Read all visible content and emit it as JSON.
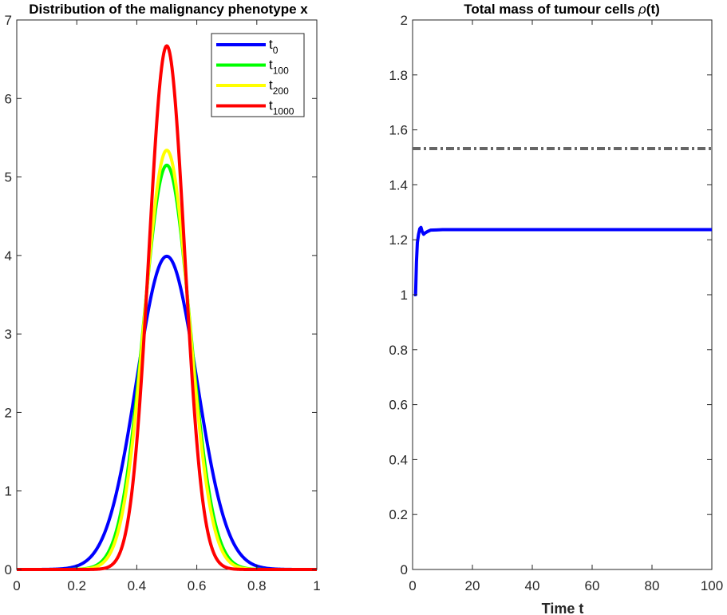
{
  "chart_data": [
    {
      "type": "line",
      "title": "Distribution of the malignancy phenotype x",
      "xlabel": "",
      "ylabel": "",
      "xlim": [
        0,
        1
      ],
      "ylim": [
        0,
        7
      ],
      "xticks": [
        0,
        0.2,
        0.4,
        0.6,
        0.8,
        1
      ],
      "xtick_labels": [
        "0",
        "0.2",
        "0.4",
        "0.6",
        "0.8",
        "1"
      ],
      "yticks": [
        0,
        1,
        2,
        3,
        4,
        5,
        6,
        7
      ],
      "ytick_labels": [
        "0",
        "1",
        "2",
        "3",
        "4",
        "5",
        "6",
        "7"
      ],
      "legend_position": "top-right",
      "series": [
        {
          "name": "t0",
          "base": "t",
          "sub": "0",
          "color": "#0000ff",
          "peak": 3.99,
          "center": 0.5,
          "sigma": 0.1
        },
        {
          "name": "t100",
          "base": "t",
          "sub": "100",
          "color": "#00ff00",
          "peak": 5.15,
          "center": 0.5,
          "sigma": 0.0775
        },
        {
          "name": "t200",
          "base": "t",
          "sub": "200",
          "color": "#ffff00",
          "peak": 5.34,
          "center": 0.5,
          "sigma": 0.074
        },
        {
          "name": "t1000",
          "base": "t",
          "sub": "1000",
          "color": "#ff0000",
          "peak": 6.67,
          "center": 0.5,
          "sigma": 0.0595
        }
      ]
    },
    {
      "type": "line",
      "title": "Total mass of tumour cells ρ(t)",
      "title_prefix": "Total mass of tumour cells ",
      "title_rho": "ρ",
      "title_suffix": "(t)",
      "xlabel": "Time t",
      "ylabel": "",
      "xlim": [
        0,
        100
      ],
      "ylim": [
        0,
        2
      ],
      "xticks": [
        0,
        20,
        40,
        60,
        80,
        100
      ],
      "xtick_labels": [
        "0",
        "20",
        "40",
        "60",
        "80",
        "100"
      ],
      "yticks": [
        0,
        0.2,
        0.4,
        0.6,
        0.8,
        1,
        1.2,
        1.4,
        1.6,
        1.8,
        2
      ],
      "ytick_labels": [
        "0",
        "0.2",
        "0.4",
        "0.6",
        "0.8",
        "1",
        "1.2",
        "1.4",
        "1.6",
        "1.8",
        "2"
      ],
      "series": [
        {
          "name": "rho(t)",
          "color": "#0000ff",
          "style": "solid",
          "x": [
            0.5,
            1.0,
            1.3,
            1.6,
            2.0,
            2.4,
            2.8,
            3.2,
            3.7,
            4.2,
            5.0,
            6.0,
            8.0,
            10.0,
            20.0,
            40.0,
            60.0,
            80.0,
            100.0
          ],
          "y": [
            1.0,
            1.0,
            1.12,
            1.19,
            1.22,
            1.24,
            1.245,
            1.23,
            1.22,
            1.225,
            1.23,
            1.235,
            1.236,
            1.237,
            1.237,
            1.237,
            1.237,
            1.237,
            1.237
          ]
        },
        {
          "name": "reference level",
          "color": "#666666",
          "style": "dashdot",
          "x": [
            0,
            100
          ],
          "y": [
            1.532,
            1.532
          ]
        }
      ]
    }
  ]
}
